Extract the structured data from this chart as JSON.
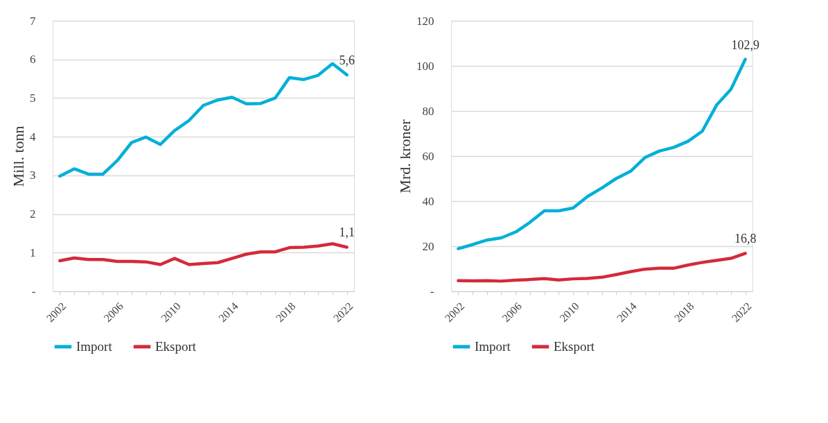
{
  "chart_data": [
    {
      "type": "line",
      "ylabel": "Mill. tonn",
      "categories": [
        "2002",
        null,
        null,
        null,
        "2006",
        null,
        null,
        null,
        "2010",
        null,
        null,
        null,
        "2014",
        null,
        null,
        null,
        "2018",
        null,
        null,
        null,
        "2022"
      ],
      "series": [
        {
          "name": "Import",
          "color": "#00b0d8",
          "values": [
            2.98,
            3.17,
            3.03,
            3.03,
            3.38,
            3.85,
            3.99,
            3.8,
            4.16,
            4.42,
            4.81,
            4.95,
            5.02,
            4.85,
            4.86,
            5.0,
            5.53,
            5.48,
            5.59,
            5.89,
            5.6
          ],
          "value_labels": [
            null,
            null,
            null,
            null,
            null,
            null,
            null,
            null,
            null,
            null,
            null,
            null,
            null,
            null,
            null,
            null,
            null,
            null,
            null,
            null,
            "5,6"
          ]
        },
        {
          "name": "Eksport",
          "color": "#d42a3a",
          "values": [
            0.79,
            0.86,
            0.82,
            0.82,
            0.77,
            0.77,
            0.76,
            0.69,
            0.85,
            0.69,
            0.72,
            0.74,
            0.85,
            0.96,
            1.02,
            1.02,
            1.13,
            1.14,
            1.17,
            1.23,
            1.14
          ],
          "value_labels": [
            null,
            null,
            null,
            null,
            null,
            null,
            null,
            null,
            null,
            null,
            null,
            null,
            null,
            null,
            null,
            null,
            null,
            null,
            null,
            null,
            "1,1"
          ]
        }
      ],
      "ylim": [
        0,
        7
      ],
      "yticks": [
        {
          "value": 0,
          "label": "-"
        },
        1,
        2,
        3,
        4,
        5,
        6,
        7
      ],
      "grid": "y",
      "legend": "bottom",
      "line_style": "solid"
    },
    {
      "type": "line",
      "ylabel": "Mrd. kroner",
      "categories": [
        "2002",
        null,
        null,
        null,
        "2006",
        null,
        null,
        null,
        "2010",
        null,
        null,
        null,
        "2014",
        null,
        null,
        null,
        "2018",
        null,
        null,
        null,
        "2022"
      ],
      "series": [
        {
          "name": "Import",
          "color": "#00b0d8",
          "values": [
            18.9,
            20.7,
            22.7,
            23.7,
            26.3,
            30.6,
            35.7,
            35.7,
            36.9,
            42,
            45.8,
            50,
            53.2,
            59.3,
            62.2,
            63.8,
            66.5,
            71,
            82.6,
            89.6,
            102.9
          ],
          "value_labels": [
            null,
            null,
            null,
            null,
            null,
            null,
            null,
            null,
            null,
            null,
            null,
            null,
            null,
            null,
            null,
            null,
            null,
            null,
            null,
            null,
            "102,9"
          ]
        },
        {
          "name": "Eksport",
          "color": "#d42a3a",
          "values": [
            4.7,
            4.6,
            4.7,
            4.5,
            4.9,
            5.2,
            5.6,
            5.0,
            5.5,
            5.7,
            6.2,
            7.4,
            8.7,
            9.8,
            10.2,
            10.2,
            11.6,
            12.8,
            13.7,
            14.6,
            16.8
          ],
          "value_labels": [
            null,
            null,
            null,
            null,
            null,
            null,
            null,
            null,
            null,
            null,
            null,
            null,
            null,
            null,
            null,
            null,
            null,
            null,
            null,
            null,
            "16,8"
          ]
        }
      ],
      "ylim": [
        0,
        120
      ],
      "yticks": [
        {
          "value": 0,
          "label": "-"
        },
        20,
        40,
        60,
        80,
        100,
        120
      ],
      "grid": "y",
      "legend": "bottom",
      "line_style": "solid"
    }
  ]
}
